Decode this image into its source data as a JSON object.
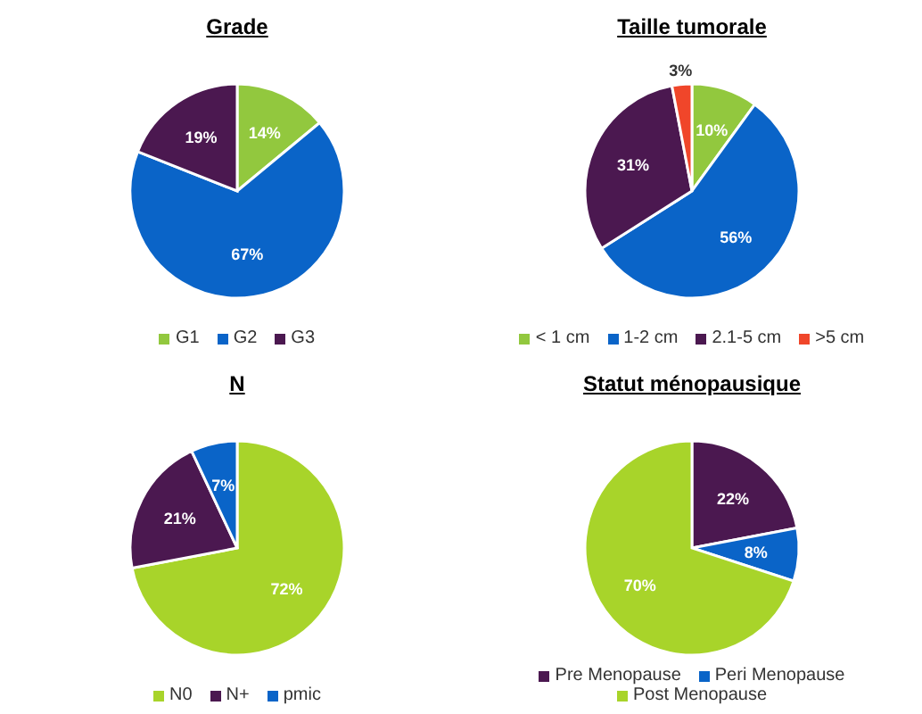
{
  "chart_data": [
    {
      "type": "pie",
      "title": "Grade",
      "categories": [
        "G1",
        "G2",
        "G3"
      ],
      "values": [
        14,
        67,
        19
      ],
      "value_labels": [
        "14%",
        "67%",
        "19%"
      ],
      "colors": [
        "#92c83e",
        "#0a64c8",
        "#4b1850"
      ],
      "legend": "bottom"
    },
    {
      "type": "pie",
      "title": "Taille tumorale",
      "categories": [
        "< 1 cm",
        "1-2 cm",
        "2.1-5 cm",
        ">5 cm"
      ],
      "values": [
        10,
        56,
        31,
        3
      ],
      "value_labels": [
        "10%",
        "56%",
        "31%",
        "3%"
      ],
      "colors": [
        "#92c83e",
        "#0a64c8",
        "#4b1850",
        "#f0462a"
      ],
      "legend": "bottom"
    },
    {
      "type": "pie",
      "title": "N",
      "categories": [
        "N0",
        "N+",
        "pmic"
      ],
      "values": [
        72,
        21,
        7
      ],
      "value_labels": [
        "72%",
        "21%",
        "7%"
      ],
      "colors": [
        "#a8d42a",
        "#4b1850",
        "#0a64c8"
      ],
      "legend": "bottom"
    },
    {
      "type": "pie",
      "title": "Statut ménopausique",
      "categories": [
        "Pre Menopause",
        "Peri Menopause",
        "Post Menopause"
      ],
      "values": [
        22,
        8,
        70
      ],
      "value_labels": [
        "22%",
        "8%",
        "70%"
      ],
      "colors": [
        "#4b1850",
        "#0a64c8",
        "#a8d42a"
      ],
      "legend": "bottom"
    }
  ]
}
